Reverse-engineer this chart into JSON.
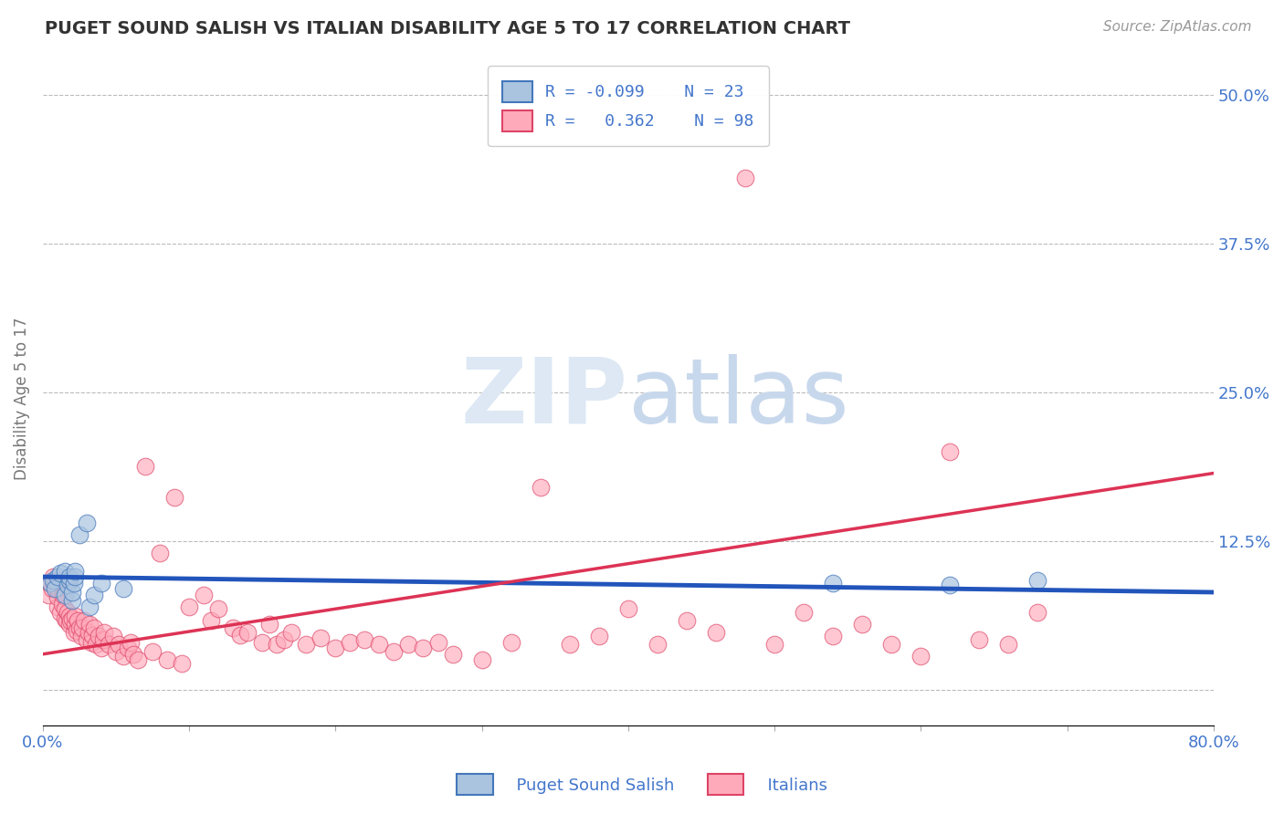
{
  "title": "PUGET SOUND SALISH VS ITALIAN DISABILITY AGE 5 TO 17 CORRELATION CHART",
  "source": "Source: ZipAtlas.com",
  "ylabel": "Disability Age 5 to 17",
  "xlim": [
    0.0,
    0.8
  ],
  "ylim": [
    -0.03,
    0.52
  ],
  "yticks": [
    0.0,
    0.125,
    0.25,
    0.375,
    0.5
  ],
  "ytick_labels": [
    "",
    "12.5%",
    "25.0%",
    "37.5%",
    "50.0%"
  ],
  "xtick_labels": [
    "0.0%",
    "",
    "",
    "",
    "",
    "",
    "",
    "",
    "80.0%"
  ],
  "background_color": "#ffffff",
  "grid_color": "#bbbbbb",
  "blue_scatter_color": "#aac4e0",
  "blue_edge_color": "#4477bb",
  "pink_scatter_color": "#ffaabb",
  "pink_edge_color": "#dd4466",
  "trend_blue": "#2255bb",
  "trend_pink": "#dd3355",
  "title_color": "#333333",
  "axis_label_color": "#4477cc",
  "watermark_color": "#dde8f4",
  "salish_points_x": [
    0.005,
    0.007,
    0.008,
    0.01,
    0.012,
    0.015,
    0.015,
    0.017,
    0.018,
    0.018,
    0.02,
    0.02,
    0.021,
    0.022,
    0.022,
    0.025,
    0.03,
    0.032,
    0.035,
    0.04,
    0.055,
    0.54,
    0.62,
    0.68
  ],
  "salish_points_y": [
    0.09,
    0.092,
    0.085,
    0.095,
    0.098,
    0.08,
    0.1,
    0.088,
    0.092,
    0.095,
    0.075,
    0.082,
    0.09,
    0.095,
    0.1,
    0.13,
    0.14,
    0.07,
    0.08,
    0.09,
    0.085,
    0.09,
    0.088,
    0.092
  ],
  "italian_points_x": [
    0.004,
    0.005,
    0.006,
    0.007,
    0.008,
    0.009,
    0.01,
    0.01,
    0.01,
    0.012,
    0.013,
    0.014,
    0.015,
    0.015,
    0.016,
    0.017,
    0.018,
    0.018,
    0.019,
    0.02,
    0.021,
    0.022,
    0.022,
    0.023,
    0.024,
    0.025,
    0.026,
    0.027,
    0.028,
    0.03,
    0.031,
    0.032,
    0.033,
    0.034,
    0.035,
    0.036,
    0.038,
    0.04,
    0.041,
    0.042,
    0.045,
    0.048,
    0.05,
    0.052,
    0.055,
    0.058,
    0.06,
    0.062,
    0.065,
    0.07,
    0.075,
    0.08,
    0.085,
    0.09,
    0.095,
    0.1,
    0.11,
    0.115,
    0.12,
    0.13,
    0.135,
    0.14,
    0.15,
    0.155,
    0.16,
    0.165,
    0.17,
    0.18,
    0.19,
    0.2,
    0.21,
    0.22,
    0.23,
    0.24,
    0.25,
    0.26,
    0.27,
    0.28,
    0.3,
    0.32,
    0.34,
    0.36,
    0.38,
    0.4,
    0.42,
    0.44,
    0.46,
    0.48,
    0.5,
    0.52,
    0.54,
    0.56,
    0.58,
    0.6,
    0.62,
    0.64,
    0.66,
    0.68
  ],
  "italian_points_y": [
    0.08,
    0.09,
    0.085,
    0.095,
    0.088,
    0.092,
    0.07,
    0.078,
    0.085,
    0.065,
    0.072,
    0.08,
    0.06,
    0.068,
    0.058,
    0.065,
    0.055,
    0.062,
    0.058,
    0.06,
    0.048,
    0.055,
    0.062,
    0.05,
    0.058,
    0.052,
    0.045,
    0.052,
    0.058,
    0.042,
    0.048,
    0.055,
    0.04,
    0.046,
    0.052,
    0.038,
    0.045,
    0.035,
    0.042,
    0.048,
    0.038,
    0.045,
    0.032,
    0.038,
    0.028,
    0.035,
    0.04,
    0.03,
    0.025,
    0.188,
    0.032,
    0.115,
    0.025,
    0.162,
    0.022,
    0.07,
    0.08,
    0.058,
    0.068,
    0.052,
    0.046,
    0.048,
    0.04,
    0.055,
    0.038,
    0.042,
    0.048,
    0.038,
    0.044,
    0.035,
    0.04,
    0.042,
    0.038,
    0.032,
    0.038,
    0.035,
    0.04,
    0.03,
    0.025,
    0.04,
    0.17,
    0.038,
    0.045,
    0.068,
    0.038,
    0.058,
    0.048,
    0.43,
    0.038,
    0.065,
    0.045,
    0.055,
    0.038,
    0.028,
    0.2,
    0.042,
    0.038,
    0.065
  ],
  "salish_trend_x": [
    0.0,
    0.8
  ],
  "salish_trend_y": [
    0.095,
    0.082
  ],
  "italian_trend_x": [
    0.0,
    0.8
  ],
  "italian_trend_y": [
    0.03,
    0.182
  ]
}
